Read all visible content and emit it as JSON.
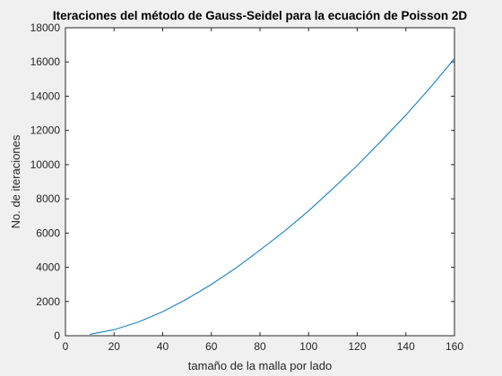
{
  "chart_data": {
    "type": "line",
    "title": "Iteraciones del método de Gauss-Seidel para la ecuación de Poisson 2D",
    "xlabel": "tamaño de la malla por lado",
    "ylabel": "No. de iteraciones",
    "xlim": [
      0,
      160
    ],
    "ylim": [
      0,
      18000
    ],
    "xticks": [
      0,
      20,
      40,
      60,
      80,
      100,
      120,
      140,
      160
    ],
    "yticks": [
      0,
      2000,
      4000,
      6000,
      8000,
      10000,
      12000,
      14000,
      16000,
      18000
    ],
    "grid": false,
    "series": [
      {
        "color": "#0072bd",
        "x": [
          10,
          20,
          30,
          40,
          50,
          60,
          70,
          80,
          90,
          100,
          110,
          120,
          130,
          140,
          150,
          160
        ],
        "y": [
          80,
          350,
          800,
          1400,
          2150,
          3000,
          3950,
          5000,
          6100,
          7300,
          8600,
          9950,
          11400,
          12900,
          14500,
          16200
        ]
      }
    ]
  }
}
